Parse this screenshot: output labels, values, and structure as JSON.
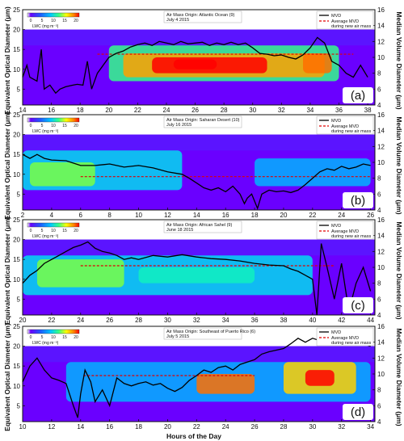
{
  "figure": {
    "ylabel_left": "Equivalent Optical Diameter (μm)",
    "ylabel_right": "Median Volume Diameter (μm)",
    "xlabel": "Hours of the Day",
    "legend": {
      "mvd": "MVD",
      "avg": "Average MVD",
      "avg_sub": "during new air mass"
    },
    "colorbar": {
      "ticks": [
        "0",
        "5",
        "10",
        "15",
        "20"
      ],
      "label": "LWC (mg m⁻³)"
    }
  },
  "chart_data": [
    {
      "type": "heatmap",
      "panel_label": "(a)",
      "origin": "Air Mass Origin: Atlantic Ocean (9)",
      "date": "July 4 2015",
      "x_ticks": [
        14,
        16,
        18,
        20,
        22,
        24,
        26,
        28,
        30,
        32,
        34,
        36,
        38
      ],
      "xlim": [
        14,
        38.5
      ],
      "y_ticks": [
        5,
        10,
        15,
        20,
        25
      ],
      "ylim": [
        1,
        25
      ],
      "y2_ticks": [
        4,
        6,
        8,
        10,
        12,
        14,
        16
      ],
      "y2lim": [
        4,
        16
      ],
      "air_mass_start": 19.2,
      "avg_mvd": 10.4,
      "avg_range": [
        19.2,
        37.0
      ],
      "mvd": [
        [
          14,
          7.5
        ],
        [
          14.3,
          9
        ],
        [
          14.5,
          7.5
        ],
        [
          15,
          7
        ],
        [
          15.3,
          11
        ],
        [
          15.5,
          6
        ],
        [
          15.9,
          6.5
        ],
        [
          16.3,
          5.5
        ],
        [
          16.6,
          6
        ],
        [
          17,
          6.3
        ],
        [
          17.5,
          6.5
        ],
        [
          17.8,
          6.6
        ],
        [
          18.2,
          6.5
        ],
        [
          18.5,
          9.5
        ],
        [
          18.8,
          6
        ],
        [
          19.2,
          8
        ],
        [
          19.6,
          9
        ],
        [
          20,
          10
        ],
        [
          20.5,
          10.5
        ],
        [
          21,
          10.8
        ],
        [
          21.5,
          11.3
        ],
        [
          22,
          11.6
        ],
        [
          22.5,
          11.8
        ],
        [
          23,
          11.5
        ],
        [
          23.5,
          12
        ],
        [
          24,
          11.8
        ],
        [
          24.5,
          11.6
        ],
        [
          25,
          12
        ],
        [
          25.5,
          11.7
        ],
        [
          26,
          11.8
        ],
        [
          26.5,
          11.9
        ],
        [
          27,
          11.5
        ],
        [
          27.5,
          11.8
        ],
        [
          28,
          11.6
        ],
        [
          28.5,
          11.9
        ],
        [
          29,
          11.6
        ],
        [
          29.5,
          11.8
        ],
        [
          30,
          11.2
        ],
        [
          30.5,
          10.5
        ],
        [
          31,
          10.4
        ],
        [
          31.5,
          10.2
        ],
        [
          32,
          10.3
        ],
        [
          32.5,
          10
        ],
        [
          33,
          9.8
        ],
        [
          33.5,
          10.3
        ],
        [
          34,
          11.2
        ],
        [
          34.5,
          12.5
        ],
        [
          35,
          11.8
        ],
        [
          35.5,
          9.5
        ],
        [
          36,
          9
        ],
        [
          36.5,
          8
        ],
        [
          37,
          7.5
        ],
        [
          37.5,
          9
        ],
        [
          38,
          7.5
        ]
      ],
      "lwc": [
        {
          "x": [
            20,
            36
          ],
          "y": [
            7,
            16
          ],
          "v": 8
        },
        {
          "x": [
            21,
            35
          ],
          "y": [
            8,
            14
          ],
          "v": 13
        },
        {
          "x": [
            23,
            31
          ],
          "y": [
            9,
            13
          ],
          "v": 17
        },
        {
          "x": [
            24.5,
            27.5
          ],
          "y": [
            10,
            12.5
          ],
          "v": 20
        },
        {
          "x": [
            33.5,
            35.5
          ],
          "y": [
            9,
            14
          ],
          "v": 14
        }
      ]
    },
    {
      "type": "heatmap",
      "panel_label": "(b)",
      "origin": "Air Mass Origin: Saharan Desert (10)",
      "date": "July 16 2015",
      "x_ticks": [
        2,
        4,
        6,
        8,
        10,
        12,
        14,
        16,
        18,
        20,
        22,
        24,
        26
      ],
      "xlim": [
        2,
        26.3
      ],
      "y_ticks": [
        5,
        10,
        15,
        20,
        25
      ],
      "ylim": [
        1,
        25
      ],
      "y2_ticks": [
        4,
        6,
        8,
        10,
        12,
        14,
        16
      ],
      "y2lim": [
        4,
        16
      ],
      "air_mass_start": 6.0,
      "avg_mvd": 8.2,
      "avg_range": [
        6.0,
        26.0
      ],
      "mvd": [
        [
          2,
          11
        ],
        [
          2.5,
          10.5
        ],
        [
          3,
          11
        ],
        [
          3.5,
          10.5
        ],
        [
          4,
          10.3
        ],
        [
          5,
          10.2
        ],
        [
          6,
          9.6
        ],
        [
          7,
          9.6
        ],
        [
          8,
          9.8
        ],
        [
          9,
          9.4
        ],
        [
          10,
          9.6
        ],
        [
          11,
          9.3
        ],
        [
          12,
          8.8
        ],
        [
          13,
          8.5
        ],
        [
          13.5,
          8.0
        ],
        [
          14,
          7.4
        ],
        [
          14.5,
          6.8
        ],
        [
          15,
          6.5
        ],
        [
          15.5,
          6.8
        ],
        [
          16,
          6.3
        ],
        [
          16.5,
          7.0
        ],
        [
          17,
          6.0
        ],
        [
          17.3,
          4.8
        ],
        [
          17.5,
          5.5
        ],
        [
          17.8,
          6.0
        ],
        [
          18.2,
          4.2
        ],
        [
          18.5,
          6.0
        ],
        [
          19,
          6.5
        ],
        [
          19.5,
          6.3
        ],
        [
          20,
          6.4
        ],
        [
          20.5,
          6.2
        ],
        [
          21,
          6.5
        ],
        [
          21.5,
          7.2
        ],
        [
          22,
          8.0
        ],
        [
          22.5,
          8.8
        ],
        [
          23,
          9.2
        ],
        [
          23.5,
          9.0
        ],
        [
          24,
          9.5
        ],
        [
          24.5,
          9.2
        ],
        [
          25,
          9.4
        ],
        [
          25.5,
          9.8
        ],
        [
          26,
          9.6
        ]
      ],
      "lwc": [
        {
          "x": [
            2,
            13
          ],
          "y": [
            6,
            16
          ],
          "v": 6
        },
        {
          "x": [
            2.5,
            7
          ],
          "y": [
            7,
            13
          ],
          "v": 9
        },
        {
          "x": [
            18,
            26
          ],
          "y": [
            7,
            14
          ],
          "v": 5
        }
      ]
    },
    {
      "type": "heatmap",
      "panel_label": "(c)",
      "origin": "Air Mass Origin: African Sahel (9)",
      "date": "June 18 2015",
      "x_ticks": [
        20,
        22,
        24,
        26,
        28,
        30,
        32,
        34,
        36,
        38,
        40,
        42,
        44
      ],
      "xlim": [
        20,
        44.3
      ],
      "y_ticks": [
        5,
        10,
        15,
        20,
        25
      ],
      "ylim": [
        1,
        25
      ],
      "y2_ticks": [
        4,
        6,
        8,
        10,
        12,
        14,
        16
      ],
      "y2lim": [
        4,
        16
      ],
      "air_mass_start": 24.0,
      "avg_mvd": 10.2,
      "avg_range": [
        24.0,
        41.5
      ],
      "mvd": [
        [
          20,
          8
        ],
        [
          20.5,
          9
        ],
        [
          21,
          9.6
        ],
        [
          21.5,
          10.5
        ],
        [
          22,
          11
        ],
        [
          22.5,
          11.5
        ],
        [
          23,
          12
        ],
        [
          23.5,
          12.5
        ],
        [
          24,
          12.8
        ],
        [
          24.5,
          13.2
        ],
        [
          25,
          12.4
        ],
        [
          25.5,
          12.0
        ],
        [
          26,
          11.8
        ],
        [
          26.5,
          11.5
        ],
        [
          27,
          11.0
        ],
        [
          27.5,
          11.2
        ],
        [
          28,
          11.0
        ],
        [
          29,
          11.5
        ],
        [
          30,
          11.3
        ],
        [
          31,
          11.6
        ],
        [
          32,
          11.3
        ],
        [
          33,
          11.1
        ],
        [
          34,
          11.0
        ],
        [
          35,
          10.8
        ],
        [
          36,
          10.5
        ],
        [
          37,
          10.3
        ],
        [
          38,
          10.2
        ],
        [
          38.5,
          9.8
        ],
        [
          39,
          9.5
        ],
        [
          39.5,
          9.0
        ],
        [
          40,
          8.5
        ],
        [
          40.3,
          4.0
        ],
        [
          40.6,
          13
        ],
        [
          41,
          10
        ],
        [
          41.5,
          6
        ],
        [
          42,
          10.5
        ],
        [
          42.5,
          4.5
        ],
        [
          43,
          8
        ],
        [
          43.5,
          10
        ],
        [
          44,
          7
        ]
      ],
      "lwc": [
        {
          "x": [
            20,
            40
          ],
          "y": [
            6,
            16
          ],
          "v": 6
        },
        {
          "x": [
            21,
            27
          ],
          "y": [
            8,
            15
          ],
          "v": 9
        },
        {
          "x": [
            28,
            36
          ],
          "y": [
            9,
            13
          ],
          "v": 7
        }
      ]
    },
    {
      "type": "heatmap",
      "panel_label": "(d)",
      "origin": "Air Mass Origin: Southeast of Puerto Rico (6)",
      "date": "July 5 2015",
      "x_ticks": [
        10,
        12,
        14,
        16,
        18,
        20,
        22,
        24,
        26,
        28,
        30,
        32,
        34
      ],
      "xlim": [
        10,
        34.3
      ],
      "y_ticks": [
        5,
        10,
        15,
        20,
        25
      ],
      "ylim": [
        1,
        25
      ],
      "y2_ticks": [
        4,
        6,
        8,
        10,
        12,
        14,
        16
      ],
      "y2lim": [
        4,
        16
      ],
      "air_mass_start": 14.2,
      "avg_mvd": 9.8,
      "avg_range": [
        14.2,
        26.0
      ],
      "mvd": [
        [
          10,
          9
        ],
        [
          10.5,
          11
        ],
        [
          11,
          12
        ],
        [
          11.5,
          10.5
        ],
        [
          12,
          9.5
        ],
        [
          12.5,
          9.2
        ],
        [
          13,
          8.8
        ],
        [
          13.5,
          6
        ],
        [
          13.8,
          4.5
        ],
        [
          14,
          7.5
        ],
        [
          14.3,
          10.5
        ],
        [
          14.7,
          9
        ],
        [
          15,
          6.5
        ],
        [
          15.5,
          8.0
        ],
        [
          16,
          6.0
        ],
        [
          16.5,
          9.5
        ],
        [
          17,
          8.8
        ],
        [
          17.5,
          8.5
        ],
        [
          18,
          8.8
        ],
        [
          18.5,
          9.0
        ],
        [
          19,
          8.6
        ],
        [
          19.5,
          8.8
        ],
        [
          20,
          8.2
        ],
        [
          20.5,
          7.8
        ],
        [
          21,
          8.3
        ],
        [
          21.5,
          9.2
        ],
        [
          22,
          9.8
        ],
        [
          22.5,
          10.5
        ],
        [
          23,
          10.2
        ],
        [
          23.5,
          10.8
        ],
        [
          24,
          11.0
        ],
        [
          24.5,
          10.5
        ],
        [
          25,
          11.2
        ],
        [
          25.5,
          11.5
        ],
        [
          26,
          11.8
        ],
        [
          26.5,
          12.5
        ],
        [
          27,
          12.8
        ],
        [
          27.5,
          13.0
        ],
        [
          28,
          13.2
        ],
        [
          28.5,
          13.8
        ],
        [
          29,
          14.5
        ],
        [
          29.5,
          14.0
        ],
        [
          30,
          14.5
        ],
        [
          30.5,
          14.2
        ],
        [
          31,
          14.8
        ],
        [
          31.5,
          15.0
        ],
        [
          32,
          14.2
        ],
        [
          32.5,
          14.5
        ],
        [
          33,
          14.0
        ],
        [
          33.5,
          13.8
        ],
        [
          34,
          13.5
        ]
      ],
      "lwc": [
        {
          "x": [
            13,
            34
          ],
          "y": [
            6,
            16
          ],
          "v": 5
        },
        {
          "x": [
            22,
            26
          ],
          "y": [
            8,
            13
          ],
          "v": 14
        },
        {
          "x": [
            28,
            33
          ],
          "y": [
            8,
            16
          ],
          "v": 12
        },
        {
          "x": [
            29.5,
            31.5
          ],
          "y": [
            10,
            14
          ],
          "v": 17
        }
      ]
    }
  ]
}
